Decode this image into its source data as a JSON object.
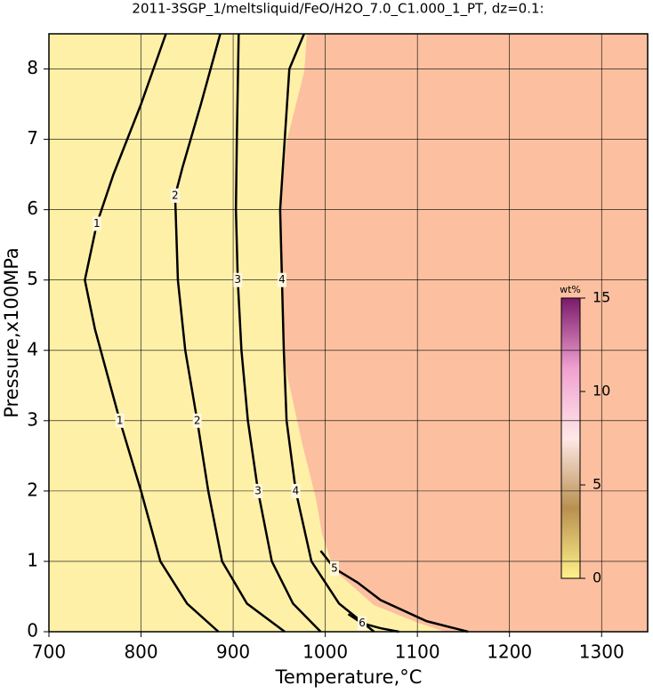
{
  "chart_data": {
    "type": "contour",
    "title": "2011-3SGP_1/meltsliquid/FeO/H2O_7.0_C1.000_1_PT, dz=0.1:",
    "xlabel": "Temperature,°C",
    "ylabel": "Pressure,x100MPa",
    "xlim": [
      700,
      1350
    ],
    "ylim": [
      0,
      8.5
    ],
    "xticks": [
      700,
      800,
      900,
      1000,
      1100,
      1200,
      1300
    ],
    "yticks": [
      0,
      1,
      2,
      3,
      4,
      5,
      6,
      7,
      8
    ],
    "grid": true,
    "colorbar": {
      "label": "wt%",
      "lim": [
        0,
        15
      ],
      "ticks": [
        0,
        5,
        10,
        15
      ]
    },
    "contours": [
      {
        "level": 1,
        "x": [
          827,
          800,
          770,
          752,
          739,
          750,
          777,
          800,
          821,
          850,
          884
        ],
        "y": [
          8.5,
          7.5,
          6.5,
          5.8,
          5.0,
          4.3,
          3.0,
          2.0,
          1.0,
          0.4,
          0
        ]
      },
      {
        "level": 2,
        "x": [
          886,
          865,
          845,
          837,
          840,
          848,
          861,
          873,
          888,
          915,
          956
        ],
        "y": [
          8.5,
          7.5,
          6.6,
          6.2,
          5.0,
          4.0,
          3.0,
          2.0,
          1.0,
          0.4,
          0
        ]
      },
      {
        "level": 3,
        "x": [
          906,
          904,
          903,
          905,
          909,
          916,
          927,
          942,
          965,
          995
        ],
        "y": [
          8.5,
          7.0,
          6.0,
          5.0,
          4.0,
          3.0,
          2.0,
          1.0,
          0.4,
          0
        ]
      },
      {
        "level": 4,
        "x": [
          977,
          961,
          951,
          953,
          955,
          958,
          968,
          985,
          1015,
          1053
        ],
        "y": [
          8.5,
          8.0,
          6.0,
          5.0,
          4.0,
          3.0,
          2.0,
          1.0,
          0.4,
          0
        ]
      },
      {
        "level": 5,
        "x": [
          995,
          1010,
          1035,
          1060,
          1110,
          1155
        ],
        "y": [
          1.15,
          0.9,
          0.7,
          0.45,
          0.15,
          0
        ]
      },
      {
        "level": 6,
        "x": [
          1025,
          1040,
          1060,
          1080
        ],
        "y": [
          0.25,
          0.12,
          0.05,
          0
        ]
      }
    ]
  }
}
